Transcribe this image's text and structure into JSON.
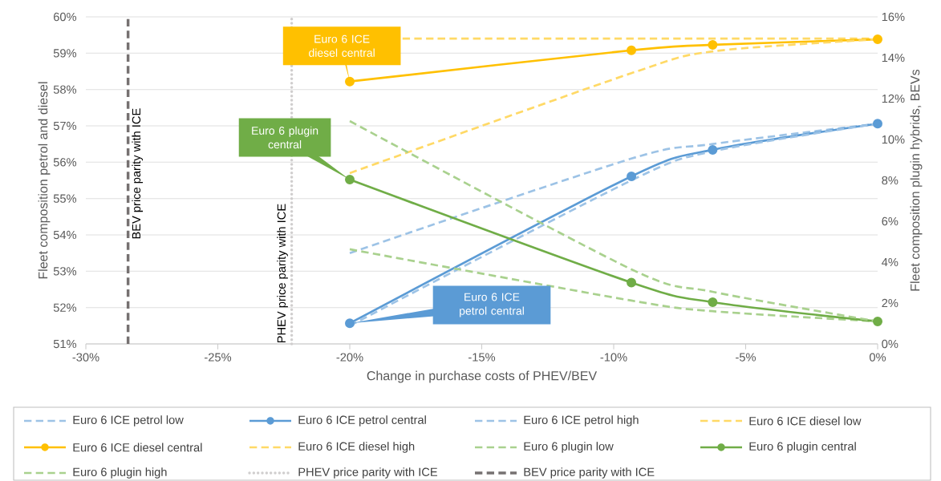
{
  "chart_data": {
    "type": "line",
    "xlabel": "Change in purchase costs of PHEV/BEV",
    "ylabel": "Fleet composition petrol and diesel",
    "y2label": "Fleet composition plugin hybrids, BEVs",
    "x": [
      -20,
      -9.33,
      -6.25,
      0
    ],
    "xlim": [
      -30,
      0
    ],
    "xticks": [
      {
        "value": -30,
        "label": "-30%"
      },
      {
        "value": -25,
        "label": "-25%"
      },
      {
        "value": -20,
        "label": "-20%"
      },
      {
        "value": -15,
        "label": "-15%"
      },
      {
        "value": -10,
        "label": "-10%"
      },
      {
        "value": -5,
        "label": "-5%"
      },
      {
        "value": 0,
        "label": "0%"
      }
    ],
    "ylim": [
      51,
      60
    ],
    "yticks": [
      {
        "value": 51,
        "label": "51%"
      },
      {
        "value": 52,
        "label": "52%"
      },
      {
        "value": 53,
        "label": "53%"
      },
      {
        "value": 54,
        "label": "54%"
      },
      {
        "value": 55,
        "label": "55%"
      },
      {
        "value": 56,
        "label": "56%"
      },
      {
        "value": 57,
        "label": "57%"
      },
      {
        "value": 58,
        "label": "58%"
      },
      {
        "value": 59,
        "label": "59%"
      },
      {
        "value": 60,
        "label": "60%"
      }
    ],
    "y2lim": [
      0,
      16
    ],
    "y2ticks": [
      {
        "value": 0,
        "label": "0%"
      },
      {
        "value": 2,
        "label": "2%"
      },
      {
        "value": 4,
        "label": "4%"
      },
      {
        "value": 6,
        "label": "6%"
      },
      {
        "value": 8,
        "label": "8%"
      },
      {
        "value": 10,
        "label": "10%"
      },
      {
        "value": 12,
        "label": "12%"
      },
      {
        "value": 14,
        "label": "14%"
      },
      {
        "value": 16,
        "label": "16%"
      }
    ],
    "grid": "y",
    "legend": "bottom",
    "series": [
      {
        "name": "Euro 6 ICE petrol low",
        "color": "#9dc3e6",
        "line_style": "dashed",
        "marker": "none",
        "values": [
          53.5,
          56.1,
          56.5,
          57.06
        ]
      },
      {
        "name": "Euro 6 ICE petrol central",
        "color": "#5b9bd5",
        "line_style": "solid",
        "marker": "circle",
        "values": [
          51.57,
          55.61,
          56.34,
          57.06
        ]
      },
      {
        "name": "Euro 6 ICE petrol high",
        "color": "#9dc3e6",
        "line_style": "dashed",
        "marker": "none",
        "values": [
          51.5,
          55.5,
          56.3,
          57.06
        ]
      },
      {
        "name": "Euro 6 ICE diesel low",
        "color": "#ffd966",
        "line_style": "dashed",
        "marker": "none",
        "x": [
          -18,
          -9.33,
          -6.25,
          0
        ],
        "values": [
          59.4,
          59.4,
          59.4,
          59.4
        ]
      },
      {
        "name": "Euro 6 ICE diesel central",
        "color": "#ffc000",
        "line_style": "solid",
        "marker": "circle",
        "values": [
          58.22,
          59.08,
          59.23,
          59.38
        ]
      },
      {
        "name": "Euro 6 ICE diesel high",
        "color": "#ffd966",
        "line_style": "dashed",
        "marker": "none",
        "values": [
          55.7,
          58.45,
          59.05,
          59.38
        ]
      },
      {
        "name": "Euro 6 plugin low",
        "color": "#a9d18e",
        "line_style": "dashed",
        "marker": "none",
        "axis": "y2",
        "values": [
          4.63,
          2.12,
          1.6,
          1.1
        ]
      },
      {
        "name": "Euro 6 plugin central",
        "color": "#70ad47",
        "line_style": "solid",
        "marker": "circle",
        "axis": "y2",
        "values": [
          8.04,
          3.0,
          2.04,
          1.1
        ]
      },
      {
        "name": "Euro 6 plugin high",
        "color": "#a9d18e",
        "line_style": "dashed",
        "marker": "none",
        "axis": "y2",
        "values": [
          10.9,
          3.65,
          2.55,
          1.1
        ]
      }
    ],
    "ref_lines": [
      {
        "axis": "x",
        "value": -22.2,
        "label": "PHEV price parity with ICE",
        "color": "#d0cece",
        "line_style": "dotted"
      },
      {
        "axis": "x",
        "value": -28.4,
        "label": "BEV price parity with ICE",
        "color": "#767171",
        "line_style": "dashed"
      }
    ],
    "annotations": [
      {
        "text": "Euro 6 ICE diesel central",
        "x": -20,
        "y": 58.22
      },
      "Euro 6 plugin central",
      {
        "text": "Euro 6 ICE petrol central",
        "x": -20,
        "y": 51.57
      }
    ]
  }
}
